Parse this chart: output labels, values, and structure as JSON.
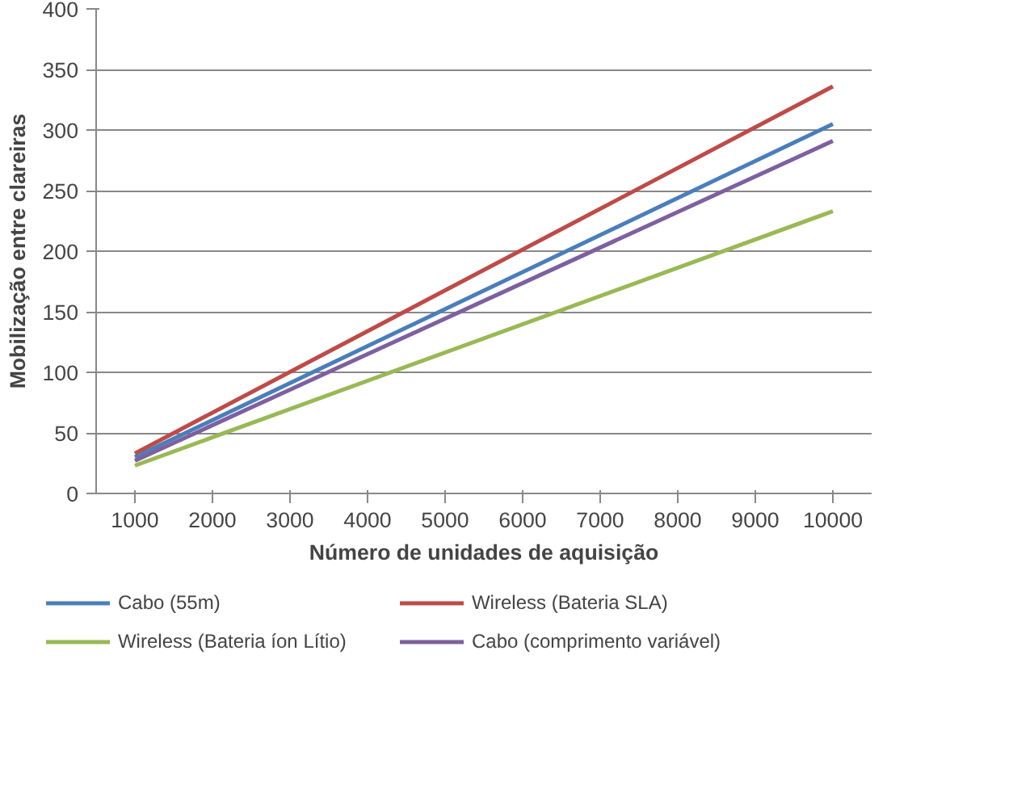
{
  "chart_data": {
    "type": "line",
    "xlabel": "Número de unidades de aquisição",
    "ylabel": "Mobilização entre clareiras",
    "x": [
      1000,
      10000
    ],
    "series": [
      {
        "name": "Cabo (55m)",
        "color": "#4a7ebb",
        "values": [
          30,
          305
        ]
      },
      {
        "name": "Wireless (Bateria SLA)",
        "color": "#be4b48",
        "values": [
          33,
          336
        ]
      },
      {
        "name": "Wireless (Bateria íon Lítio)",
        "color": "#98b954",
        "values": [
          23,
          233
        ]
      },
      {
        "name": "Cabo (comprimento variável)",
        "color": "#7d60a0",
        "values": [
          27,
          291
        ]
      }
    ],
    "xlim": [
      500,
      10500
    ],
    "xticks": [
      1000,
      2000,
      3000,
      4000,
      5000,
      6000,
      7000,
      8000,
      9000,
      10000
    ],
    "ylim": [
      0,
      400
    ],
    "yticks": [
      0,
      50,
      100,
      150,
      200,
      250,
      300,
      350,
      400
    ],
    "grid": "y",
    "legend": "bottom",
    "marker": "none",
    "line_style": "solid"
  }
}
